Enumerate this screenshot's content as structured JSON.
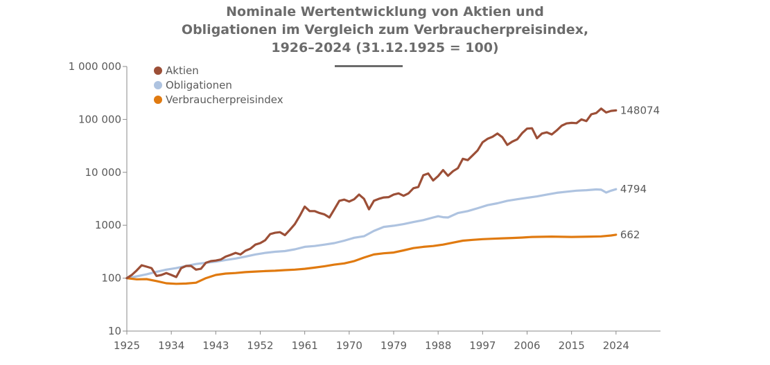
{
  "chart_data": {
    "type": "line",
    "title_lines": [
      "Nominale Wertentwicklung von Aktien und",
      "Obligationen im Vergleich zum Verbraucherpreisindex,",
      "1926–2024 (31.12.1925 = 100)"
    ],
    "yscale": "log",
    "ylim": [
      10,
      1000000
    ],
    "xlim": [
      1925,
      2033
    ],
    "y_ticks": [
      {
        "value": 10,
        "label": "10"
      },
      {
        "value": 100,
        "label": "100"
      },
      {
        "value": 1000,
        "label": "1000"
      },
      {
        "value": 10000,
        "label": "10 000"
      },
      {
        "value": 100000,
        "label": "100 000"
      },
      {
        "value": 1000000,
        "label": "1 000 000"
      }
    ],
    "x_ticks": [
      {
        "value": 1925,
        "label": "1925"
      },
      {
        "value": 1934,
        "label": "1934"
      },
      {
        "value": 1943,
        "label": "1943"
      },
      {
        "value": 1952,
        "label": "1952"
      },
      {
        "value": 1961,
        "label": "1961"
      },
      {
        "value": 1970,
        "label": "1970"
      },
      {
        "value": 1979,
        "label": "1979"
      },
      {
        "value": 1988,
        "label": "1988"
      },
      {
        "value": 1997,
        "label": "1997"
      },
      {
        "value": 2006,
        "label": "2006"
      },
      {
        "value": 2015,
        "label": "2015"
      },
      {
        "value": 2024,
        "label": "2024"
      }
    ],
    "grid": false,
    "legend_position": "top-left",
    "series": [
      {
        "name": "Aktien",
        "color": "#9c4f37",
        "end_label": "148074",
        "points": [
          [
            1925,
            100
          ],
          [
            1926,
            115
          ],
          [
            1927,
            140
          ],
          [
            1928,
            175
          ],
          [
            1929,
            165
          ],
          [
            1930,
            155
          ],
          [
            1931,
            110
          ],
          [
            1932,
            115
          ],
          [
            1933,
            125
          ],
          [
            1934,
            115
          ],
          [
            1935,
            105
          ],
          [
            1936,
            155
          ],
          [
            1937,
            170
          ],
          [
            1938,
            170
          ],
          [
            1939,
            145
          ],
          [
            1940,
            150
          ],
          [
            1941,
            195
          ],
          [
            1942,
            210
          ],
          [
            1943,
            215
          ],
          [
            1944,
            225
          ],
          [
            1945,
            255
          ],
          [
            1946,
            275
          ],
          [
            1947,
            300
          ],
          [
            1948,
            280
          ],
          [
            1949,
            330
          ],
          [
            1950,
            360
          ],
          [
            1951,
            430
          ],
          [
            1952,
            460
          ],
          [
            1953,
            520
          ],
          [
            1954,
            680
          ],
          [
            1955,
            720
          ],
          [
            1956,
            740
          ],
          [
            1957,
            650
          ],
          [
            1958,
            820
          ],
          [
            1959,
            1050
          ],
          [
            1960,
            1500
          ],
          [
            1961,
            2250
          ],
          [
            1962,
            1850
          ],
          [
            1963,
            1850
          ],
          [
            1964,
            1700
          ],
          [
            1965,
            1600
          ],
          [
            1966,
            1400
          ],
          [
            1967,
            2000
          ],
          [
            1968,
            2900
          ],
          [
            1969,
            3050
          ],
          [
            1970,
            2800
          ],
          [
            1971,
            3100
          ],
          [
            1972,
            3800
          ],
          [
            1973,
            3150
          ],
          [
            1974,
            2000
          ],
          [
            1975,
            2900
          ],
          [
            1976,
            3150
          ],
          [
            1977,
            3350
          ],
          [
            1978,
            3400
          ],
          [
            1979,
            3800
          ],
          [
            1980,
            4000
          ],
          [
            1981,
            3600
          ],
          [
            1982,
            4000
          ],
          [
            1983,
            5000
          ],
          [
            1984,
            5300
          ],
          [
            1985,
            8800
          ],
          [
            1986,
            9500
          ],
          [
            1987,
            7000
          ],
          [
            1988,
            8500
          ],
          [
            1989,
            11000
          ],
          [
            1990,
            8600
          ],
          [
            1991,
            10500
          ],
          [
            1992,
            12000
          ],
          [
            1993,
            18000
          ],
          [
            1994,
            17000
          ],
          [
            1995,
            21000
          ],
          [
            1996,
            26000
          ],
          [
            1997,
            37000
          ],
          [
            1998,
            43000
          ],
          [
            1999,
            47000
          ],
          [
            2000,
            54000
          ],
          [
            2001,
            46000
          ],
          [
            2002,
            33000
          ],
          [
            2003,
            38000
          ],
          [
            2004,
            42000
          ],
          [
            2005,
            55000
          ],
          [
            2006,
            67000
          ],
          [
            2007,
            68000
          ],
          [
            2008,
            44000
          ],
          [
            2009,
            54000
          ],
          [
            2010,
            57000
          ],
          [
            2011,
            52000
          ],
          [
            2012,
            62000
          ],
          [
            2013,
            76000
          ],
          [
            2014,
            84000
          ],
          [
            2015,
            86000
          ],
          [
            2016,
            85000
          ],
          [
            2017,
            100000
          ],
          [
            2018,
            93000
          ],
          [
            2019,
            125000
          ],
          [
            2020,
            132000
          ],
          [
            2021,
            160000
          ],
          [
            2022,
            135000
          ],
          [
            2023,
            145000
          ],
          [
            2024,
            148074
          ]
        ]
      },
      {
        "name": "Obligationen",
        "color": "#aec3e0",
        "end_label": "4794",
        "points": [
          [
            1925,
            100
          ],
          [
            1927,
            108
          ],
          [
            1929,
            118
          ],
          [
            1931,
            132
          ],
          [
            1933,
            145
          ],
          [
            1935,
            155
          ],
          [
            1937,
            170
          ],
          [
            1939,
            185
          ],
          [
            1941,
            195
          ],
          [
            1943,
            205
          ],
          [
            1945,
            220
          ],
          [
            1947,
            235
          ],
          [
            1949,
            255
          ],
          [
            1951,
            280
          ],
          [
            1953,
            300
          ],
          [
            1955,
            315
          ],
          [
            1957,
            325
          ],
          [
            1959,
            350
          ],
          [
            1961,
            390
          ],
          [
            1963,
            405
          ],
          [
            1965,
            430
          ],
          [
            1967,
            460
          ],
          [
            1969,
            510
          ],
          [
            1971,
            580
          ],
          [
            1973,
            620
          ],
          [
            1975,
            780
          ],
          [
            1977,
            930
          ],
          [
            1979,
            980
          ],
          [
            1981,
            1050
          ],
          [
            1983,
            1150
          ],
          [
            1985,
            1250
          ],
          [
            1987,
            1400
          ],
          [
            1988,
            1480
          ],
          [
            1989,
            1420
          ],
          [
            1990,
            1400
          ],
          [
            1992,
            1700
          ],
          [
            1994,
            1850
          ],
          [
            1996,
            2100
          ],
          [
            1998,
            2400
          ],
          [
            2000,
            2600
          ],
          [
            2002,
            2900
          ],
          [
            2004,
            3100
          ],
          [
            2006,
            3300
          ],
          [
            2008,
            3500
          ],
          [
            2010,
            3800
          ],
          [
            2012,
            4100
          ],
          [
            2014,
            4300
          ],
          [
            2016,
            4500
          ],
          [
            2018,
            4600
          ],
          [
            2020,
            4750
          ],
          [
            2021,
            4700
          ],
          [
            2022,
            4150
          ],
          [
            2023,
            4500
          ],
          [
            2024,
            4794
          ]
        ]
      },
      {
        "name": "Verbraucherpreisindex",
        "color": "#e07a10",
        "end_label": "662",
        "points": [
          [
            1925,
            100
          ],
          [
            1927,
            95
          ],
          [
            1929,
            96
          ],
          [
            1931,
            88
          ],
          [
            1933,
            80
          ],
          [
            1935,
            78
          ],
          [
            1937,
            79
          ],
          [
            1939,
            82
          ],
          [
            1941,
            100
          ],
          [
            1943,
            115
          ],
          [
            1945,
            122
          ],
          [
            1947,
            125
          ],
          [
            1949,
            130
          ],
          [
            1951,
            133
          ],
          [
            1953,
            136
          ],
          [
            1955,
            138
          ],
          [
            1957,
            142
          ],
          [
            1959,
            145
          ],
          [
            1961,
            150
          ],
          [
            1963,
            158
          ],
          [
            1965,
            168
          ],
          [
            1967,
            180
          ],
          [
            1969,
            190
          ],
          [
            1971,
            210
          ],
          [
            1973,
            245
          ],
          [
            1975,
            280
          ],
          [
            1977,
            295
          ],
          [
            1979,
            305
          ],
          [
            1981,
            335
          ],
          [
            1983,
            370
          ],
          [
            1985,
            390
          ],
          [
            1987,
            405
          ],
          [
            1989,
            430
          ],
          [
            1991,
            470
          ],
          [
            1993,
            510
          ],
          [
            1995,
            530
          ],
          [
            1997,
            545
          ],
          [
            1999,
            555
          ],
          [
            2001,
            565
          ],
          [
            2003,
            575
          ],
          [
            2005,
            585
          ],
          [
            2007,
            600
          ],
          [
            2009,
            605
          ],
          [
            2011,
            610
          ],
          [
            2013,
            605
          ],
          [
            2015,
            600
          ],
          [
            2017,
            605
          ],
          [
            2019,
            610
          ],
          [
            2021,
            615
          ],
          [
            2023,
            640
          ],
          [
            2024,
            662
          ]
        ]
      }
    ]
  }
}
